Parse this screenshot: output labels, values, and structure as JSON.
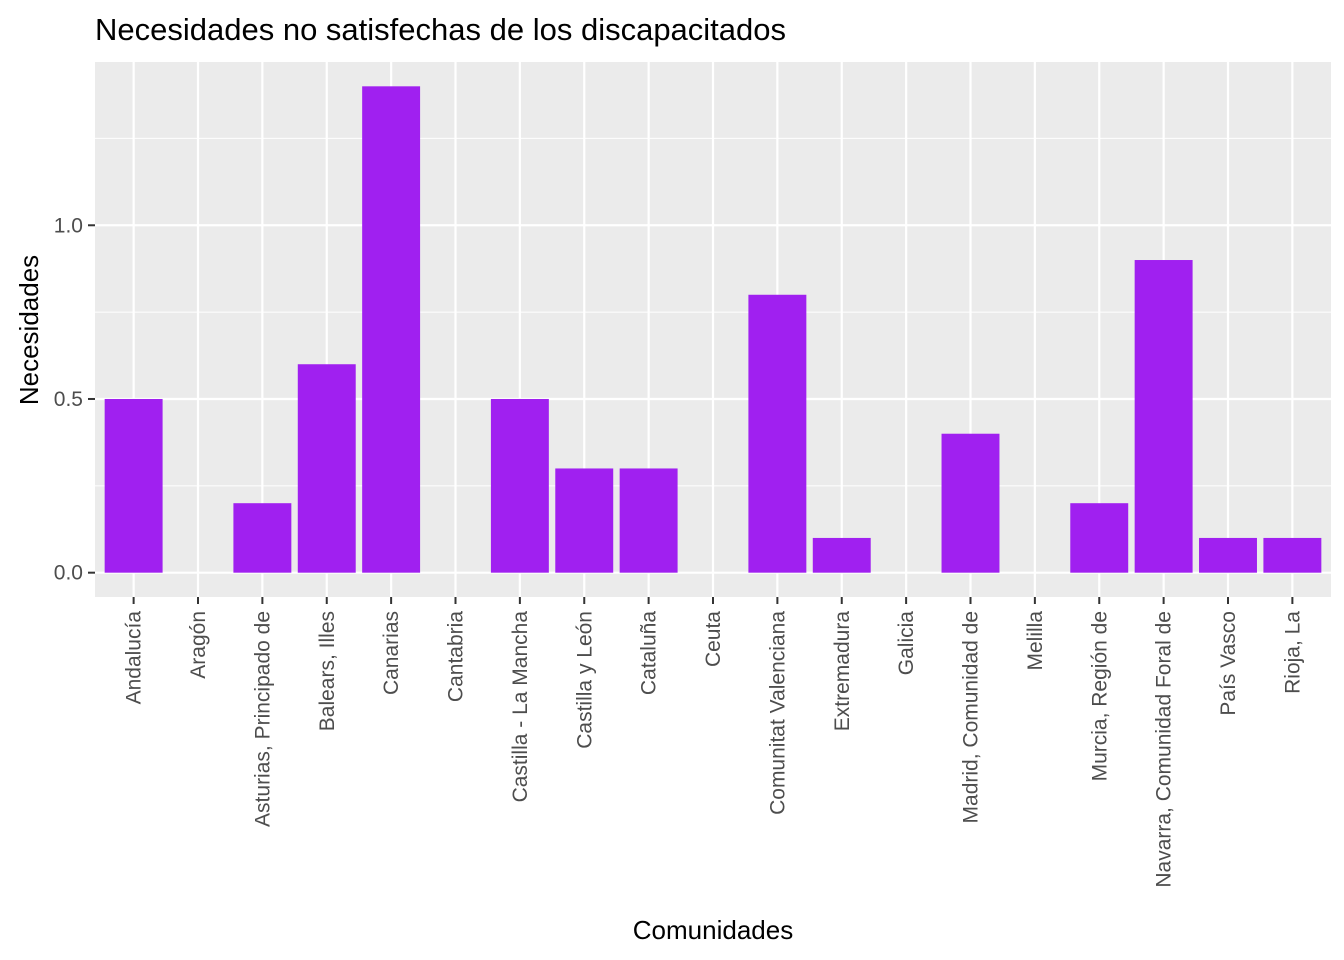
{
  "chart_data": {
    "type": "bar",
    "title": "Necesidades no satisfechas de los discapacitados",
    "xlabel": "Comunidades",
    "ylabel": "Necesidades",
    "categories": [
      "Andalucía",
      "Aragón",
      "Asturias, Principado de",
      "Balears, Illes",
      "Canarias",
      "Cantabria",
      "Castilla - La Mancha",
      "Castilla y León",
      "Cataluña",
      "Ceuta",
      "Comunitat Valenciana",
      "Extremadura",
      "Galicia",
      "Madrid, Comunidad de",
      "Melilla",
      "Murcia, Región de",
      "Navarra, Comunidad Foral de",
      "País Vasco",
      "Rioja, La"
    ],
    "values": [
      0.5,
      0,
      0.2,
      0.6,
      1.4,
      0,
      0.5,
      0.3,
      0.3,
      0,
      0.8,
      0.1,
      0,
      0.4,
      0,
      0.2,
      0.9,
      0.1,
      0.1
    ],
    "yticks": [
      "0.0",
      "0.5",
      "1.0"
    ],
    "ylim": [
      -0.07,
      1.47
    ],
    "grid": true,
    "legend": "none",
    "colors": {
      "bar": "#A020F0",
      "panel": "#EBEBEB",
      "grid": "#FFFFFF",
      "tick_text": "#4D4D4D",
      "tick_mark": "#333333"
    }
  }
}
